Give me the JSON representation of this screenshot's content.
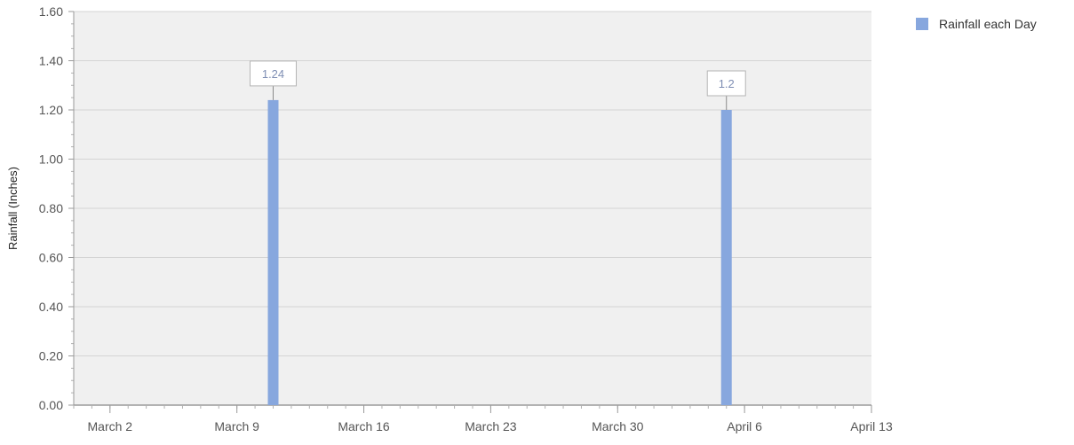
{
  "chart_data": {
    "type": "bar",
    "ylabel": "Rainfall (Inches)",
    "xlabel": "",
    "ylim": [
      0,
      1.6
    ],
    "y_ticks": [
      "0.00",
      "0.20",
      "0.40",
      "0.60",
      "0.80",
      "1.00",
      "1.20",
      "1.40",
      "1.60"
    ],
    "x_axis": {
      "start": "2024-02-29",
      "end": "2024-04-13",
      "ticks": [
        {
          "date": "2024-03-02",
          "label": "March 2"
        },
        {
          "date": "2024-03-09",
          "label": "March 9"
        },
        {
          "date": "2024-03-16",
          "label": "March 16"
        },
        {
          "date": "2024-03-23",
          "label": "March 23"
        },
        {
          "date": "2024-03-30",
          "label": "March 30"
        },
        {
          "date": "2024-04-06",
          "label": "April 6"
        },
        {
          "date": "2024-04-13",
          "label": "April 13"
        }
      ]
    },
    "series": [
      {
        "name": "Rainfall each Day",
        "color": "#87a7de",
        "points": [
          {
            "date": "2024-03-11",
            "value": 1.24,
            "label": "1.24"
          },
          {
            "date": "2024-04-05",
            "value": 1.2,
            "label": "1.2"
          }
        ]
      }
    ],
    "grid": true,
    "legend": "top-right"
  }
}
